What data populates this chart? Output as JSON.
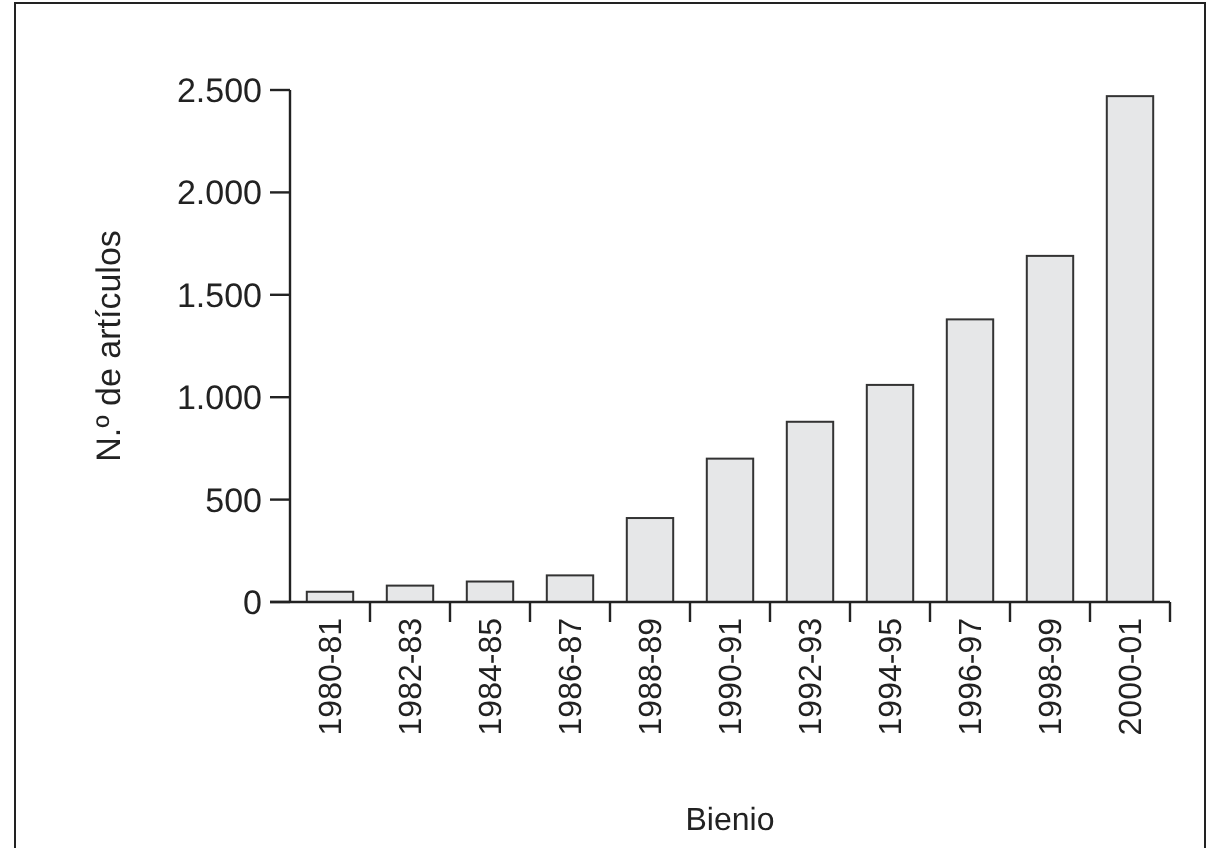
{
  "chart_data": {
    "type": "bar",
    "xlabel": "Bienio",
    "ylabel": "N.º de artículos",
    "categories": [
      "1980-81",
      "1982-83",
      "1984-85",
      "1986-87",
      "1988-89",
      "1990-91",
      "1992-93",
      "1994-95",
      "1996-97",
      "1998-99",
      "2000-01"
    ],
    "values": [
      50,
      80,
      100,
      130,
      410,
      700,
      880,
      1060,
      1380,
      1690,
      2470
    ],
    "color": "#e6e7e8",
    "ylim": [
      0,
      2500
    ],
    "yticks": [
      0,
      500,
      {
        "value": 1000,
        "label": "1.000"
      },
      {
        "value": 1500,
        "label": "1.500"
      },
      {
        "value": 2000,
        "label": "2.000"
      },
      {
        "value": 2500,
        "label": "2.500"
      }
    ],
    "grid": false
  }
}
